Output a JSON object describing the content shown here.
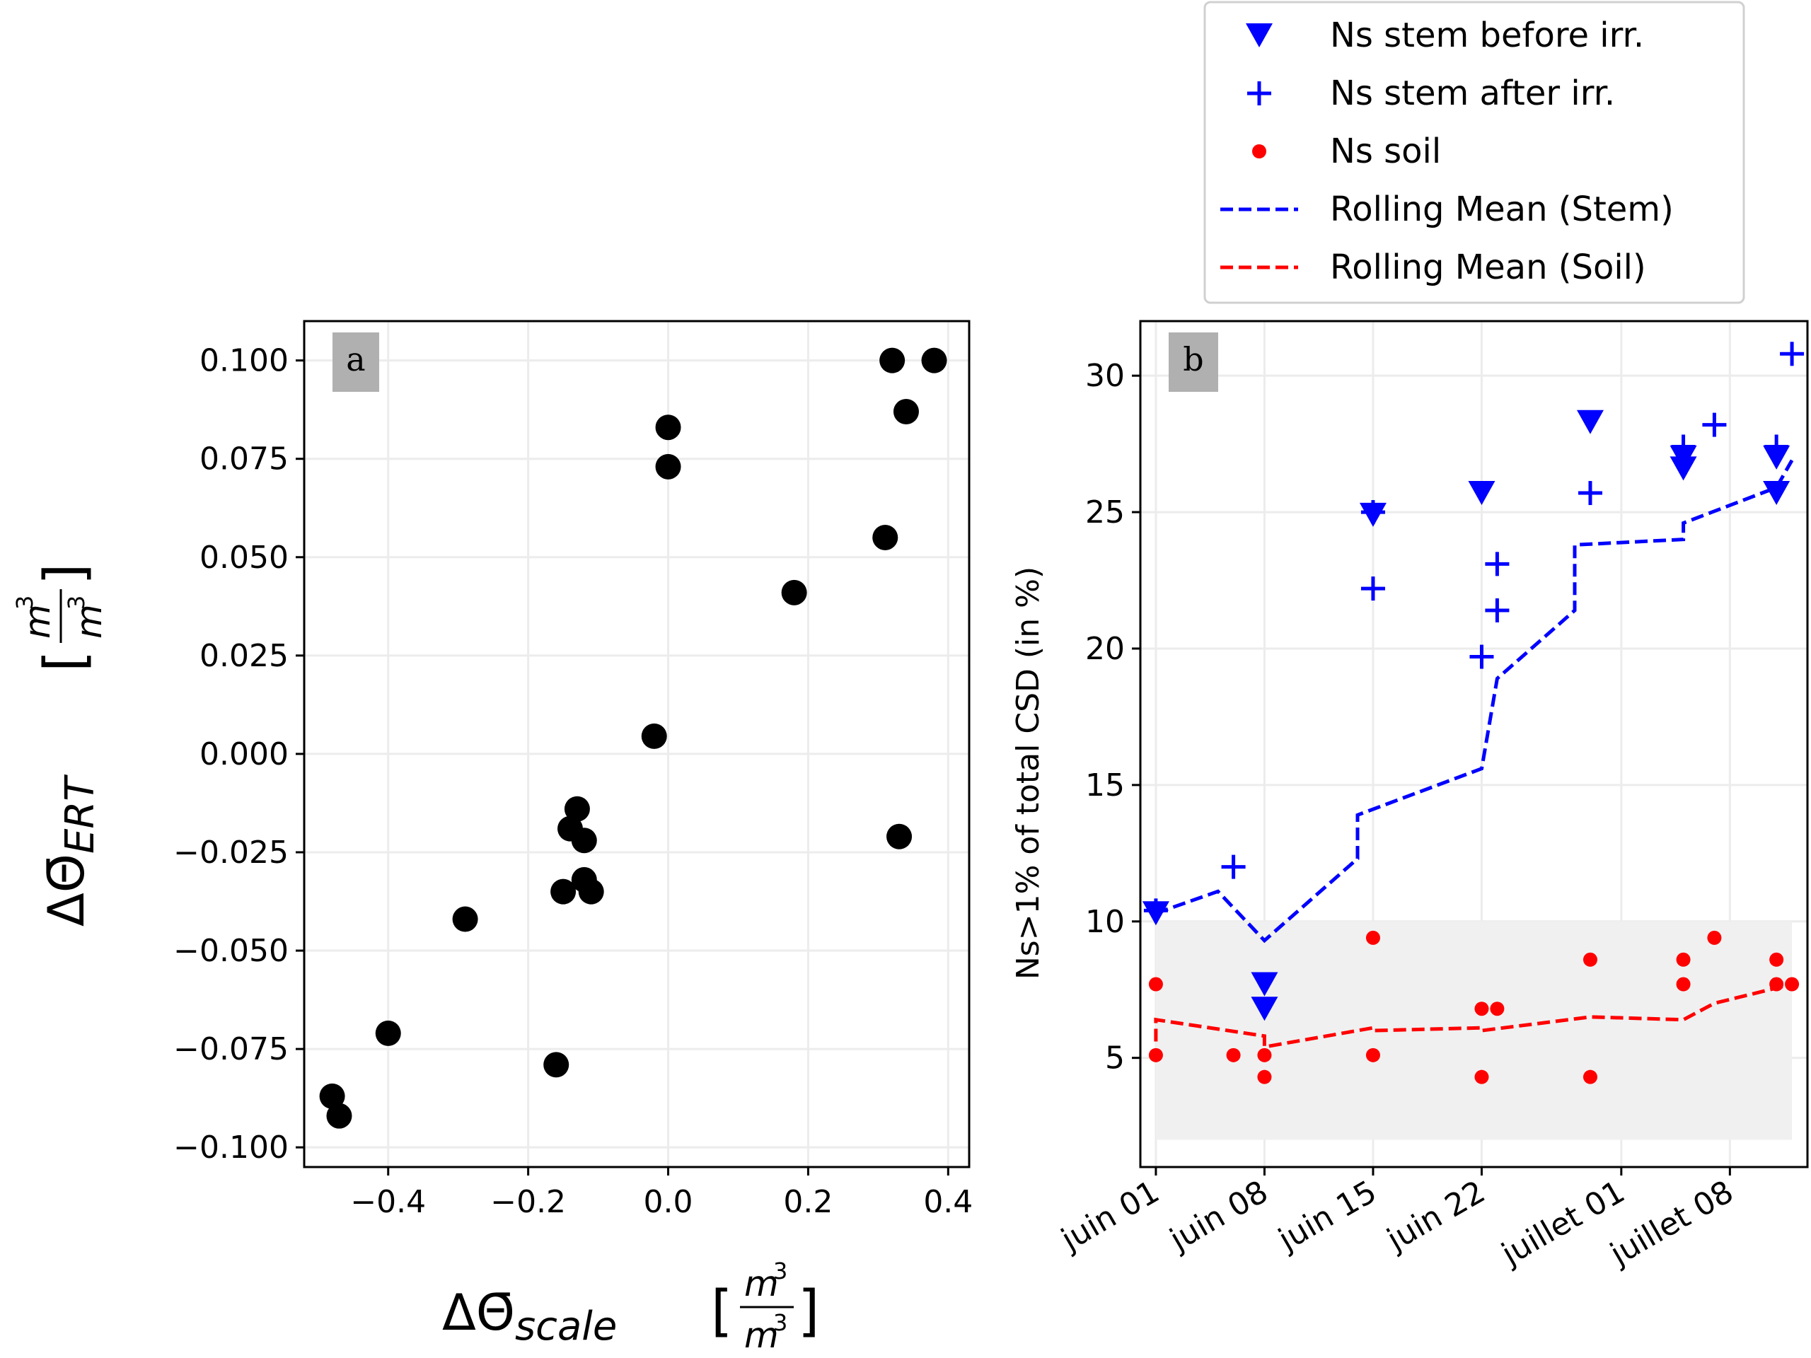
{
  "chart_data": [
    {
      "type": "scatter",
      "panel_label": "a",
      "xlabel": "ΔΘ̄",
      "xlabel_sub": "scale",
      "ylabel": "ΔΘ̄",
      "ylabel_sub": "ERT",
      "unit_num": "m",
      "unit_den": "m",
      "unit_exp": "3",
      "xlim": [
        -0.52,
        0.43
      ],
      "ylim": [
        -0.105,
        0.11
      ],
      "xticks": [
        -0.4,
        -0.2,
        0.0,
        0.2,
        0.4
      ],
      "xtick_labels": [
        "−0.4",
        "−0.2",
        "0.0",
        "0.2",
        "0.4"
      ],
      "yticks": [
        0.1,
        0.075,
        0.05,
        0.025,
        0.0,
        -0.025,
        -0.05,
        -0.075,
        -0.1
      ],
      "ytick_labels": [
        "0.100",
        "0.075",
        "0.050",
        "0.025",
        "0.000",
        "−0.025",
        "−0.050",
        "−0.075",
        "−0.100"
      ],
      "grid": true,
      "marker_color": "#000000",
      "points": [
        {
          "x": 0.32,
          "y": 0.1
        },
        {
          "x": 0.38,
          "y": 0.1
        },
        {
          "x": 0.34,
          "y": 0.087
        },
        {
          "x": 0.0,
          "y": 0.083
        },
        {
          "x": 0.0,
          "y": 0.073
        },
        {
          "x": 0.31,
          "y": 0.055
        },
        {
          "x": 0.18,
          "y": 0.041
        },
        {
          "x": -0.02,
          "y": 0.0045
        },
        {
          "x": -0.13,
          "y": -0.014
        },
        {
          "x": -0.14,
          "y": -0.019
        },
        {
          "x": -0.12,
          "y": -0.022
        },
        {
          "x": -0.12,
          "y": -0.032
        },
        {
          "x": -0.11,
          "y": -0.035
        },
        {
          "x": -0.15,
          "y": -0.035
        },
        {
          "x": 0.33,
          "y": -0.021
        },
        {
          "x": -0.29,
          "y": -0.042
        },
        {
          "x": -0.4,
          "y": -0.071
        },
        {
          "x": -0.16,
          "y": -0.079
        },
        {
          "x": -0.48,
          "y": -0.087
        },
        {
          "x": -0.47,
          "y": -0.092
        }
      ]
    },
    {
      "type": "scatter",
      "panel_label": "b",
      "ylabel": "Ns>1% of total CSD (in %)",
      "x_type": "date",
      "xlim": [
        "2023-05-31",
        "2023-07-13"
      ],
      "ylim": [
        1.0,
        32.0
      ],
      "xtick_dates": [
        "2023-06-01",
        "2023-06-08",
        "2023-06-15",
        "2023-06-22",
        "2023-07-01",
        "2023-07-08"
      ],
      "xtick_labels": [
        "juin 01",
        "juin 08",
        "juin 15",
        "juin 22",
        "juillet 01",
        "juillet 08"
      ],
      "yticks": [
        5,
        10,
        15,
        20,
        25,
        30
      ],
      "ytick_labels": [
        "5",
        "10",
        "15",
        "20",
        "25",
        "30"
      ],
      "grid": true,
      "shaded_band": {
        "x": [
          "2023-06-01",
          "2023-07-12"
        ],
        "y": [
          2,
          10
        ],
        "color": "#f0f0f0"
      },
      "legend_placement": "above the plot",
      "series": [
        {
          "name": "Ns stem before irr.",
          "marker": "triangle-down",
          "color": "#0000ff",
          "points": [
            {
              "x": "2023-06-01",
              "y": 10.3
            },
            {
              "x": "2023-06-08",
              "y": 7.7
            },
            {
              "x": "2023-06-08",
              "y": 6.8
            },
            {
              "x": "2023-06-15",
              "y": 24.9
            },
            {
              "x": "2023-06-22",
              "y": 25.7
            },
            {
              "x": "2023-06-29",
              "y": 28.3
            },
            {
              "x": "2023-07-05",
              "y": 27.0
            },
            {
              "x": "2023-07-05",
              "y": 26.6
            },
            {
              "x": "2023-07-11",
              "y": 27.0
            },
            {
              "x": "2023-07-11",
              "y": 25.7
            }
          ]
        },
        {
          "name": "Ns stem after irr.",
          "marker": "plus",
          "color": "#0000ff",
          "points": [
            {
              "x": "2023-06-01",
              "y": 10.4
            },
            {
              "x": "2023-06-06",
              "y": 12.0
            },
            {
              "x": "2023-06-15",
              "y": 25.0
            },
            {
              "x": "2023-06-15",
              "y": 22.2
            },
            {
              "x": "2023-06-22",
              "y": 19.7
            },
            {
              "x": "2023-06-23",
              "y": 23.1
            },
            {
              "x": "2023-06-23",
              "y": 21.4
            },
            {
              "x": "2023-06-29",
              "y": 25.7
            },
            {
              "x": "2023-07-05",
              "y": 27.4
            },
            {
              "x": "2023-07-07",
              "y": 28.2
            },
            {
              "x": "2023-07-11",
              "y": 27.4
            },
            {
              "x": "2023-07-12",
              "y": 30.8
            }
          ]
        },
        {
          "name": "Ns soil",
          "marker": "circle",
          "color": "#ff0000",
          "points": [
            {
              "x": "2023-06-01",
              "y": 7.7
            },
            {
              "x": "2023-06-01",
              "y": 5.1
            },
            {
              "x": "2023-06-06",
              "y": 5.1
            },
            {
              "x": "2023-06-08",
              "y": 5.1
            },
            {
              "x": "2023-06-08",
              "y": 4.3
            },
            {
              "x": "2023-06-15",
              "y": 9.4
            },
            {
              "x": "2023-06-15",
              "y": 5.1
            },
            {
              "x": "2023-06-22",
              "y": 6.8
            },
            {
              "x": "2023-06-23",
              "y": 6.8
            },
            {
              "x": "2023-06-22",
              "y": 4.3
            },
            {
              "x": "2023-06-29",
              "y": 8.6
            },
            {
              "x": "2023-06-29",
              "y": 4.3
            },
            {
              "x": "2023-07-05",
              "y": 8.6
            },
            {
              "x": "2023-07-05",
              "y": 7.7
            },
            {
              "x": "2023-07-07",
              "y": 9.4
            },
            {
              "x": "2023-07-11",
              "y": 8.6
            },
            {
              "x": "2023-07-11",
              "y": 7.7
            },
            {
              "x": "2023-07-12",
              "y": 7.7
            }
          ]
        },
        {
          "name": "Rolling Mean (Stem)",
          "line_style": "dashed",
          "color": "#0000ff",
          "points": [
            {
              "x": "2023-06-01",
              "y": 10.3
            },
            {
              "x": "2023-06-05",
              "y": 11.1
            },
            {
              "x": "2023-06-08",
              "y": 9.3
            },
            {
              "x": "2023-06-14",
              "y": 12.3
            },
            {
              "x": "2023-06-14",
              "y": 13.9
            },
            {
              "x": "2023-06-22",
              "y": 15.6
            },
            {
              "x": "2023-06-23",
              "y": 18.9
            },
            {
              "x": "2023-06-28",
              "y": 21.4
            },
            {
              "x": "2023-06-28",
              "y": 23.8
            },
            {
              "x": "2023-07-05",
              "y": 24.0
            },
            {
              "x": "2023-07-05",
              "y": 24.6
            },
            {
              "x": "2023-07-11",
              "y": 25.9
            },
            {
              "x": "2023-07-12",
              "y": 26.9
            }
          ]
        },
        {
          "name": "Rolling Mean (Soil)",
          "line_style": "dashed",
          "color": "#ff0000",
          "points": [
            {
              "x": "2023-06-01",
              "y": 5.6
            },
            {
              "x": "2023-06-01",
              "y": 6.4
            },
            {
              "x": "2023-06-08",
              "y": 5.8
            },
            {
              "x": "2023-06-08",
              "y": 5.4
            },
            {
              "x": "2023-06-15",
              "y": 6.1
            },
            {
              "x": "2023-06-15",
              "y": 6.0
            },
            {
              "x": "2023-06-22",
              "y": 6.1
            },
            {
              "x": "2023-06-22",
              "y": 6.0
            },
            {
              "x": "2023-06-29",
              "y": 6.5
            },
            {
              "x": "2023-07-05",
              "y": 6.4
            },
            {
              "x": "2023-07-07",
              "y": 7.0
            },
            {
              "x": "2023-07-12",
              "y": 7.7
            }
          ]
        }
      ]
    }
  ]
}
